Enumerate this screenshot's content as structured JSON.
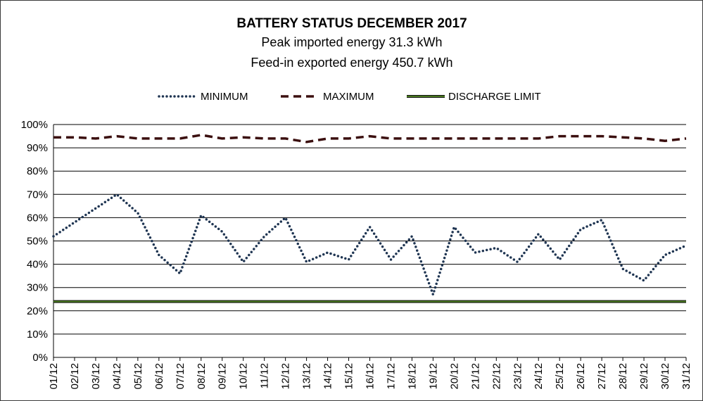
{
  "chart_data": {
    "type": "line",
    "title": "BATTERY STATUS DECEMBER 2017",
    "subtitle_lines": [
      "Peak imported energy 31.3 kWh",
      "Feed-in exported energy 450.7 kWh"
    ],
    "xlabel": "",
    "ylabel": "",
    "ylim": [
      0,
      100
    ],
    "y_tick_values": [
      0,
      10,
      20,
      30,
      40,
      50,
      60,
      70,
      80,
      90,
      100
    ],
    "y_tick_labels": [
      "0%",
      "10%",
      "20%",
      "30%",
      "40%",
      "50%",
      "60%",
      "70%",
      "80%",
      "90%",
      "100%"
    ],
    "grid": "horizontal",
    "legend_position": "top",
    "categories": [
      "01/12",
      "02/12",
      "03/12",
      "04/12",
      "05/12",
      "06/12",
      "07/12",
      "08/12",
      "09/12",
      "10/12",
      "11/12",
      "12/12",
      "13/12",
      "14/12",
      "15/12",
      "16/12",
      "17/12",
      "18/12",
      "19/12",
      "20/12",
      "21/12",
      "22/12",
      "23/12",
      "24/12",
      "25/12",
      "26/12",
      "27/12",
      "28/12",
      "29/12",
      "30/12",
      "31/12"
    ],
    "series": [
      {
        "name": "MINIMUM",
        "color": "#1f3552",
        "style": "dotted",
        "values": [
          52,
          58,
          64,
          70,
          62,
          44,
          36,
          61,
          54,
          41,
          52,
          60,
          41,
          45,
          42,
          56,
          42,
          52,
          27,
          56,
          45,
          47,
          41,
          53,
          42,
          55,
          59,
          38,
          33,
          44,
          48
        ]
      },
      {
        "name": "MAXIMUM",
        "color": "#3b0f0f",
        "style": "dashed",
        "values": [
          94.5,
          94.5,
          94,
          95,
          94,
          94,
          94,
          95.5,
          94,
          94.5,
          94,
          94,
          92.5,
          94,
          94,
          95,
          94,
          94,
          94,
          94,
          94,
          94,
          94,
          94,
          95,
          95,
          95,
          94.5,
          94,
          93,
          94
        ]
      },
      {
        "name": "DISCHARGE LIMIT",
        "color": "#4a7a1f",
        "style": "solid-double",
        "values": [
          24,
          24,
          24,
          24,
          24,
          24,
          24,
          24,
          24,
          24,
          24,
          24,
          24,
          24,
          24,
          24,
          24,
          24,
          24,
          24,
          24,
          24,
          24,
          24,
          24,
          24,
          24,
          24,
          24,
          24,
          24
        ]
      }
    ]
  }
}
